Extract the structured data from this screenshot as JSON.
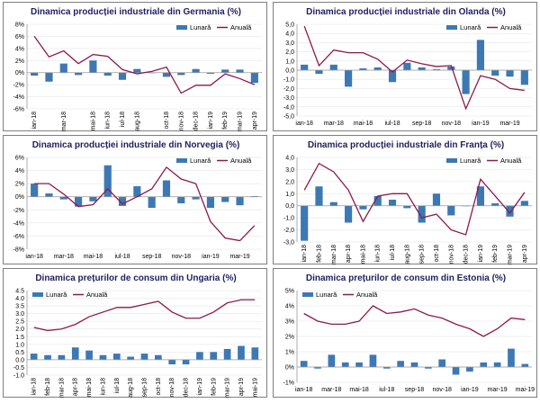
{
  "colors": {
    "bar": "#3c78b4",
    "line": "#8b1a4a"
  },
  "legend": {
    "bar_label": "Lunară",
    "line_label": "Anuală"
  },
  "chart_data": [
    {
      "type": "bar-line",
      "title": "Dinamica producției industriale din Germania (%)",
      "ylim": [
        -6,
        8
      ],
      "yticks": [
        8,
        6,
        4,
        2,
        0,
        -2,
        -4,
        -6
      ],
      "ytick_labels": [
        "8%",
        "6%",
        "4%",
        "2%",
        "0%",
        "-2%",
        "-4%",
        "-6%"
      ],
      "legend_position": "top-right",
      "categories": [
        "ian-18",
        "feb-18",
        "mar-18",
        "apr-18",
        "mai-18",
        "iun-18",
        "iul-18",
        "aug-18",
        "sep-18",
        "oct-18",
        "nov-18",
        "dec-18",
        "ian-19",
        "feb-19",
        "mar-19",
        "apr-19"
      ],
      "xtick_labels": [
        "ian-18",
        "",
        "mar-18",
        "",
        "mai-18",
        "iun-18",
        "iul-18",
        "aug-18",
        "",
        "oct-18",
        "nov-18",
        "dec-18",
        "ian-19",
        "feb-19",
        "mar-19",
        "apr-19"
      ],
      "label_style": "rotated",
      "series": [
        {
          "name": "Lunară",
          "kind": "bar",
          "values": [
            -0.5,
            -1.5,
            1.5,
            -0.4,
            2.0,
            -0.5,
            -1.2,
            0.6,
            0.0,
            -0.7,
            -0.4,
            0.6,
            -0.2,
            0.5,
            0.5,
            -1.7
          ]
        },
        {
          "name": "Anuală",
          "kind": "line",
          "values": [
            6.0,
            2.6,
            3.6,
            1.5,
            3.0,
            2.7,
            0.5,
            -0.2,
            0.2,
            0.9,
            -3.4,
            -2.1,
            -2.1,
            -0.2,
            -1.0,
            -2.0
          ]
        }
      ]
    },
    {
      "type": "bar-line",
      "title": "Dinamica producției industriale din Olanda (%)",
      "ylim": [
        -5,
        5
      ],
      "yticks": [
        5,
        4,
        3,
        2,
        1,
        0,
        -1,
        -2,
        -3,
        -4,
        -5
      ],
      "ytick_labels": [
        "5,0",
        "4,0",
        "3,0",
        "2,0",
        "1,0",
        "0,0",
        "-1,0",
        "-2,0",
        "-3,0",
        "-4,0",
        "-5,0"
      ],
      "legend_position": "top-right",
      "categories": [
        "ian-18",
        "feb-18",
        "mar-18",
        "apr-18",
        "mai-18",
        "iun-18",
        "iul-18",
        "aug-18",
        "sep-18",
        "oct-18",
        "nov-18",
        "dec-18",
        "ian-19",
        "feb-19",
        "mar-19",
        "apr-19"
      ],
      "xtick_labels": [
        "ian-18",
        "",
        "mar-18",
        "",
        "mai-18",
        "",
        "iul-18",
        "",
        "sep-18",
        "",
        "nov-18",
        "",
        "ian-19",
        "",
        "mar-19",
        ""
      ],
      "label_style": "horizontal",
      "series": [
        {
          "name": "Lunară",
          "kind": "bar",
          "values": [
            0.6,
            -0.4,
            0.6,
            -1.8,
            0.2,
            0.3,
            -1.3,
            0.8,
            0.3,
            0.1,
            0.4,
            -2.6,
            3.3,
            -0.6,
            -0.7,
            -1.6
          ]
        },
        {
          "name": "Anuală",
          "kind": "line",
          "values": [
            4.8,
            0.5,
            2.2,
            1.9,
            1.9,
            1.2,
            -0.2,
            1.1,
            0.7,
            0.4,
            0.5,
            -4.2,
            -0.6,
            -1.0,
            -2.0,
            -2.2
          ]
        }
      ]
    },
    {
      "type": "bar-line",
      "title": "Dinamica producției industriale din Norvegia (%)",
      "ylim": [
        -8,
        6
      ],
      "yticks": [
        6,
        4,
        2,
        0,
        -2,
        -4,
        -6,
        -8
      ],
      "ytick_labels": [
        "6%",
        "4%",
        "2%",
        "0%",
        "-2%",
        "-4%",
        "-6%",
        "-8%"
      ],
      "legend_position": "top-right",
      "categories": [
        "ian-18",
        "feb-18",
        "mar-18",
        "apr-18",
        "mai-18",
        "iun-18",
        "iul-18",
        "aug-18",
        "sep-18",
        "oct-18",
        "nov-18",
        "dec-18",
        "ian-19",
        "feb-19",
        "mar-19",
        "apr-19"
      ],
      "xtick_labels": [
        "ian-18",
        "",
        "mar-18",
        "",
        "mai-18",
        "",
        "iul-18",
        "",
        "sep-18",
        "",
        "nov-18",
        "",
        "ian-19",
        "",
        "mar-19",
        ""
      ],
      "label_style": "horizontal",
      "series": [
        {
          "name": "Lunară",
          "kind": "bar",
          "values": [
            2.0,
            0.5,
            -0.4,
            -1.5,
            -0.7,
            4.8,
            -1.4,
            1.6,
            -1.7,
            2.5,
            -1.0,
            -0.4,
            -1.7,
            -0.8,
            -1.3,
            0.1
          ]
        },
        {
          "name": "Anuală",
          "kind": "line",
          "values": [
            2.0,
            2.0,
            0.4,
            -1.5,
            -1.2,
            1.2,
            -1.1,
            0.0,
            1.2,
            4.5,
            2.7,
            2.0,
            -3.8,
            -6.3,
            -6.7,
            -4.4
          ]
        }
      ]
    },
    {
      "type": "bar-line",
      "title": "Dinamica producției industriale din Franța (%)",
      "ylim": [
        -3,
        4
      ],
      "yticks": [
        4,
        3,
        2,
        1,
        0,
        -1,
        -2,
        -3
      ],
      "ytick_labels": [
        "4,0",
        "3,0",
        "2,0",
        "1,0",
        "0,0",
        "-1,0",
        "-2,0",
        "-3,0"
      ],
      "legend_position": "top-right",
      "categories": [
        "ian-18",
        "feb-18",
        "mar-18",
        "apr-18",
        "mai-18",
        "iun-18",
        "iul-18",
        "aug-18",
        "sep-18",
        "oct-18",
        "nov-18",
        "dec-18",
        "ian-19",
        "feb-19",
        "mar-19",
        "apr-19"
      ],
      "xtick_labels": [
        "ian-18",
        "feb-18",
        "mar-18",
        "apr-18",
        "mai-18",
        "iun-18",
        "iul-18",
        "aug-18",
        "sep-18",
        "oct-18",
        "nov-18",
        "dec-18",
        "ian-19",
        "feb-19",
        "mar-19",
        "apr-19"
      ],
      "label_style": "rotated",
      "series": [
        {
          "name": "Lunară",
          "kind": "bar",
          "values": [
            -2.9,
            1.6,
            0.3,
            -1.4,
            -0.3,
            0.8,
            0.5,
            -0.2,
            -1.4,
            1.0,
            -0.8,
            0.0,
            1.6,
            0.2,
            -0.9,
            0.4
          ]
        },
        {
          "name": "Anuală",
          "kind": "line",
          "values": [
            1.3,
            3.5,
            2.8,
            1.3,
            -1.3,
            0.8,
            1.0,
            1.0,
            -1.0,
            -0.7,
            -2.0,
            -2.4,
            2.2,
            0.8,
            -0.6,
            1.1
          ]
        }
      ]
    },
    {
      "type": "bar-line",
      "title": "Dinamica prețurilor de consum din Ungaria (%)",
      "ylim": [
        -1,
        4.5
      ],
      "yticks": [
        4.5,
        4,
        3.5,
        3,
        2.5,
        2,
        1.5,
        1,
        0.5,
        0,
        -0.5,
        -1
      ],
      "ytick_labels": [
        "4.5",
        "4.0",
        "3.5",
        "3.0",
        "2.5",
        "2.0",
        "1.5",
        "1.0",
        "0.5",
        "0.0",
        "-0.5",
        "-1.0"
      ],
      "legend_position": "top-left",
      "categories": [
        "ian-18",
        "feb-18",
        "mar-18",
        "apr-18",
        "mai-18",
        "iun-18",
        "iul-18",
        "aug-18",
        "sep-18",
        "oct-18",
        "nov-18",
        "dec-18",
        "ian-19",
        "feb-19",
        "mar-19",
        "apr-19",
        "mai-19"
      ],
      "xtick_labels": [
        "ian-18",
        "feb-18",
        "mar-18",
        "apr-18",
        "mai-18",
        "iun-18",
        "iul-18",
        "aug-18",
        "sep-18",
        "oct-18",
        "nov-18",
        "dec-18",
        "ian-19",
        "feb-19",
        "mar-19",
        "apr-19",
        "mai-19"
      ],
      "label_style": "rotated",
      "series": [
        {
          "name": "Lunară",
          "kind": "bar",
          "values": [
            0.4,
            0.3,
            0.3,
            0.8,
            0.6,
            0.3,
            0.4,
            0.2,
            0.4,
            0.3,
            -0.3,
            -0.3,
            0.5,
            0.5,
            0.7,
            0.9,
            0.8
          ]
        },
        {
          "name": "Anuală",
          "kind": "line",
          "values": [
            2.1,
            1.9,
            2.0,
            2.3,
            2.8,
            3.1,
            3.4,
            3.4,
            3.6,
            3.8,
            3.1,
            2.7,
            2.7,
            3.1,
            3.7,
            3.9,
            3.9
          ]
        }
      ]
    },
    {
      "type": "bar-line",
      "title": "Dinamica prețurilor de consum din Estonia (%)",
      "ylim": [
        -1,
        5
      ],
      "yticks": [
        5,
        4,
        3,
        2,
        1,
        0,
        -1
      ],
      "ytick_labels": [
        "5%",
        "4%",
        "3%",
        "2%",
        "1%",
        "0%",
        "-1%"
      ],
      "legend_position": "top-left",
      "categories": [
        "ian-18",
        "feb-18",
        "mar-18",
        "apr-18",
        "mai-18",
        "iun-18",
        "iul-18",
        "aug-18",
        "sep-18",
        "oct-18",
        "nov-18",
        "dec-18",
        "ian-19",
        "feb-19",
        "mar-19",
        "apr-19",
        "mai-19"
      ],
      "xtick_labels": [
        "ian-18",
        "",
        "mar-18",
        "",
        "mai-18",
        "",
        "iul-18",
        "",
        "sep-18",
        "",
        "nov-18",
        "",
        "ian-19",
        "",
        "mar-19",
        "",
        "mai-19"
      ],
      "label_style": "horizontal",
      "series": [
        {
          "name": "Lunară",
          "kind": "bar",
          "values": [
            0.4,
            -0.1,
            0.8,
            0.3,
            0.3,
            0.8,
            -0.1,
            0.4,
            0.3,
            -0.1,
            0.5,
            -0.5,
            -0.3,
            0.3,
            0.3,
            1.2,
            0.2
          ]
        },
        {
          "name": "Anuală",
          "kind": "line",
          "values": [
            3.5,
            3.0,
            2.8,
            2.8,
            3.0,
            4.0,
            3.5,
            3.6,
            3.8,
            3.4,
            3.2,
            2.8,
            2.5,
            2.0,
            2.5,
            3.2,
            3.1
          ]
        }
      ]
    }
  ]
}
